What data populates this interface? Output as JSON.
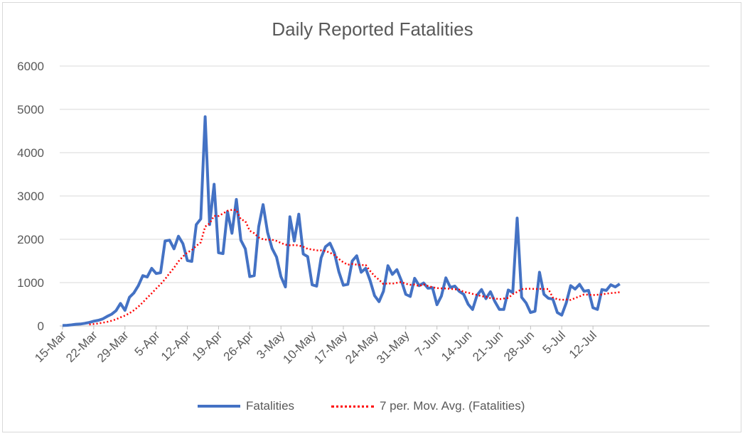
{
  "chart_data": {
    "type": "line",
    "title": "Daily Reported Fatalities",
    "xlabel": "",
    "ylabel": "",
    "ylim": [
      0,
      6000
    ],
    "yticks": [
      0,
      1000,
      2000,
      3000,
      4000,
      5000,
      6000
    ],
    "grid": true,
    "legend_position": "bottom",
    "x_start_label": "15-Mar",
    "x_tick_labels": [
      "15-Mar",
      "22-Mar",
      "29-Mar",
      "5-Apr",
      "12-Apr",
      "19-Apr",
      "26-Apr",
      "3-May",
      "10-May",
      "17-May",
      "24-May",
      "31-May",
      "7-Jun",
      "14-Jun",
      "21-Jun",
      "28-Jun",
      "5-Jul",
      "12-Jul"
    ],
    "series": [
      {
        "name": "Fatalities",
        "color": "#4472c4",
        "style": "solid",
        "values": [
          10,
          15,
          25,
          40,
          45,
          60,
          80,
          110,
          130,
          160,
          220,
          270,
          350,
          520,
          360,
          660,
          760,
          930,
          1160,
          1130,
          1330,
          1210,
          1230,
          1960,
          1980,
          1780,
          2070,
          1900,
          1510,
          1490,
          2340,
          2470,
          4830,
          2340,
          3270,
          1690,
          1670,
          2640,
          2140,
          2920,
          1980,
          1780,
          1140,
          1160,
          2290,
          2800,
          2160,
          1790,
          1590,
          1140,
          900,
          2520,
          1960,
          2580,
          1660,
          1600,
          950,
          920,
          1570,
          1830,
          1910,
          1680,
          1250,
          940,
          960,
          1500,
          1620,
          1240,
          1330,
          1050,
          700,
          560,
          800,
          1390,
          1190,
          1300,
          1050,
          730,
          680,
          1100,
          930,
          990,
          870,
          880,
          490,
          690,
          1110,
          890,
          920,
          800,
          730,
          500,
          380,
          710,
          840,
          630,
          790,
          560,
          380,
          380,
          830,
          770,
          2490,
          660,
          530,
          310,
          340,
          1240,
          730,
          640,
          620,
          310,
          250,
          530,
          930,
          850,
          960,
          800,
          820,
          420,
          380,
          840,
          820,
          950,
          900,
          970
        ]
      },
      {
        "name": "7 per. Mov. Avg. (Fatalities)",
        "color": "#ff0000",
        "style": "dotted",
        "values": [
          null,
          null,
          null,
          null,
          null,
          null,
          32,
          44,
          58,
          74,
          94,
          119,
          153,
          199,
          237,
          294,
          360,
          445,
          543,
          651,
          752,
          863,
          963,
          1080,
          1217,
          1343,
          1489,
          1602,
          1699,
          1749,
          1849,
          1927,
          2294,
          2368,
          2541,
          2537,
          2595,
          2657,
          2681,
          2675,
          2461,
          2419,
          2196,
          2140,
          2043,
          2000,
          1989,
          1990,
          1963,
          1914,
          1876,
          1862,
          1867,
          1857,
          1828,
          1779,
          1765,
          1745,
          1744,
          1731,
          1692,
          1634,
          1546,
          1468,
          1413,
          1430,
          1414,
          1401,
          1408,
          1271,
          1152,
          1066,
          966,
          984,
          975,
          995,
          1013,
          974,
          951,
          954,
          922,
          958,
          923,
          894,
          874,
          868,
          865,
          856,
          847,
          837,
          787,
          768,
          739,
          717,
          685,
          673,
          643,
          636,
          617,
          632,
          646,
          733,
          786,
          850,
          856,
          859,
          853,
          856,
          851,
          852,
          655,
          616,
          601,
          610,
          600,
          643,
          682,
          727,
          720,
          713,
          720,
          726,
          746,
          757,
          768,
          778
        ]
      }
    ]
  }
}
